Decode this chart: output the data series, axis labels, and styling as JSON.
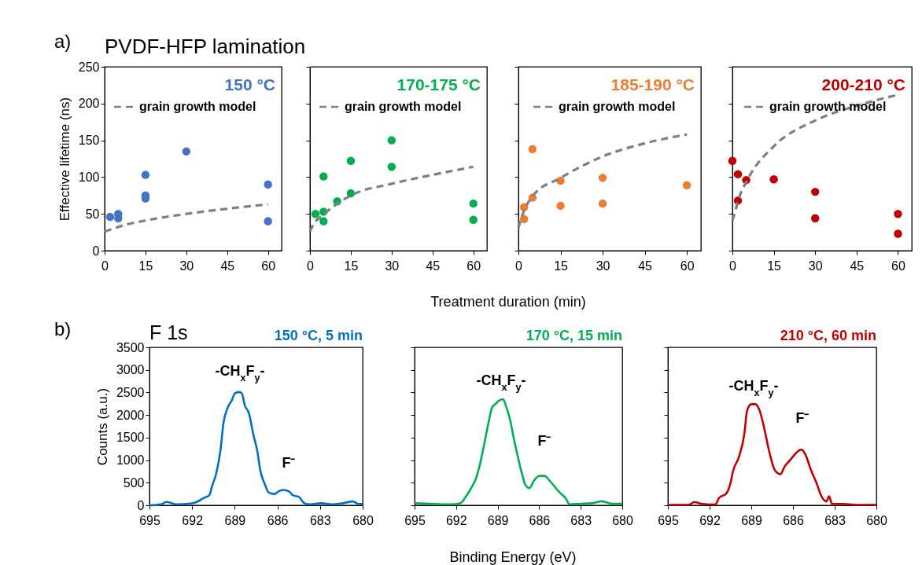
{
  "chart_data": [
    {
      "type": "scatter",
      "title": "PVDF-HFP lamination",
      "ylabel": "Effective lifetime (ns)",
      "annotations": [
        "a)"
      ],
      "xlim": [
        0,
        65
      ],
      "xticks": [
        0,
        15,
        30,
        45,
        60
      ],
      "ylim": [
        0,
        250
      ],
      "yticks": [
        0,
        50,
        100,
        150,
        200,
        250
      ],
      "legend": "top right",
      "series": [
        {
          "name": "150 °C",
          "marker": "circle",
          "color": "#4472c4",
          "x": [
            2,
            5,
            5,
            15,
            15,
            15,
            30,
            60,
            60
          ],
          "values": [
            46,
            50,
            44,
            103,
            75,
            71,
            135,
            90,
            40
          ]
        },
        {
          "name": "grain growth model",
          "type": "line",
          "color": "#7f7f7f",
          "line_style": "dashed",
          "x": [
            0,
            7.5,
            15,
            30,
            45,
            60
          ],
          "values": [
            26,
            35,
            41,
            50,
            57,
            63
          ]
        }
      ]
    },
    {
      "type": "scatter",
      "xlabel": "Treatment duration (min)",
      "xlim": [
        0,
        65
      ],
      "xticks": [
        0,
        15,
        30,
        45,
        60
      ],
      "ylim": [
        0,
        250
      ],
      "yticks": [
        0,
        50,
        100,
        150,
        200,
        250
      ],
      "tick_labels": "x",
      "legend": "top right",
      "series": [
        {
          "name": "170-175 °C",
          "marker": "circle",
          "color": "#00b050",
          "x": [
            2,
            5,
            5,
            5,
            10,
            15,
            15,
            30,
            30,
            60,
            60
          ],
          "values": [
            50,
            53,
            40,
            101,
            67,
            78,
            122,
            150,
            114,
            64,
            42
          ]
        },
        {
          "name": "grain growth model",
          "type": "line",
          "color": "#7f7f7f",
          "line_style": "dashed",
          "x": [
            0,
            1,
            5,
            15,
            30,
            45,
            60
          ],
          "values": [
            26,
            34,
            49,
            75,
            91,
            103,
            114
          ]
        }
      ]
    },
    {
      "type": "scatter",
      "xlim": [
        0,
        65
      ],
      "xticks": [
        0,
        15,
        30,
        45,
        60
      ],
      "ylim": [
        0,
        250
      ],
      "yticks": [
        0,
        50,
        100,
        150,
        200,
        250
      ],
      "tick_labels": "x",
      "legend": "top right",
      "series": [
        {
          "name": "185-190 °C",
          "marker": "circle",
          "color": "#ed7d31",
          "x": [
            2,
            2,
            5,
            5,
            15,
            15,
            30,
            30,
            60
          ],
          "values": [
            43,
            59,
            72,
            138,
            95,
            61,
            99,
            64,
            89
          ]
        },
        {
          "name": "grain growth model",
          "type": "line",
          "color": "#7f7f7f",
          "line_style": "dashed",
          "x": [
            0,
            1,
            5,
            15,
            30,
            45,
            60
          ],
          "values": [
            31,
            44,
            74,
            99,
            128,
            146,
            158
          ]
        }
      ]
    },
    {
      "type": "scatter",
      "xlim": [
        0,
        65
      ],
      "xticks": [
        0,
        15,
        30,
        45,
        60
      ],
      "ylim": [
        0,
        250
      ],
      "yticks": [
        0,
        50,
        100,
        150,
        200,
        250
      ],
      "tick_labels": "x",
      "legend": "top right",
      "series": [
        {
          "name": "200-210 °C",
          "marker": "circle",
          "color": "#c00000",
          "x": [
            0,
            2,
            5,
            2,
            15,
            30,
            30,
            60,
            60
          ],
          "values": [
            122,
            104,
            96,
            68,
            97,
            80,
            44,
            50,
            23
          ]
        },
        {
          "name": "grain growth model",
          "type": "line",
          "color": "#7f7f7f",
          "line_style": "dashed",
          "x": [
            0,
            1,
            2,
            5.7,
            15,
            30,
            45,
            60
          ],
          "values": [
            41,
            53,
            67,
            98,
            142,
            177,
            197,
            212
          ]
        }
      ]
    },
    {
      "type": "line",
      "title": "F 1s",
      "subtitle": "150 °C, 5 min",
      "ylabel": "Counts (a.u.)",
      "annotations": [
        "b)",
        "-CH$_{x}$F$_{y}$-",
        "F⁻"
      ],
      "xlim": [
        695,
        680
      ],
      "xticks": [
        695,
        692,
        689,
        686,
        683,
        680
      ],
      "ylim": [
        0,
        3500
      ],
      "yticks": [
        0,
        500,
        1000,
        1500,
        2000,
        2500,
        3000,
        3500
      ],
      "series": [
        {
          "color": "#0070c0",
          "x": [
            695,
            694.2,
            693.8,
            693.1,
            692.0,
            691.5,
            691.2,
            690.8,
            690.6,
            690.3,
            690.0,
            689.8,
            689.5,
            689.2,
            689.0,
            688.7,
            688.5,
            688.3,
            688.0,
            687.7,
            687.4,
            687.2,
            686.9,
            686.6,
            686.2,
            685.9,
            685.6,
            685.2,
            684.9,
            684.5,
            684.1,
            683.7,
            682.9,
            682.2,
            681.4,
            680.7,
            680.3,
            680
          ],
          "values": [
            0,
            20,
            75,
            20,
            45,
            100,
            160,
            220,
            420,
            710,
            1230,
            1810,
            2160,
            2330,
            2480,
            2510,
            2480,
            2220,
            2040,
            1580,
            1180,
            770,
            480,
            280,
            250,
            310,
            340,
            310,
            220,
            190,
            45,
            20,
            45,
            20,
            45,
            85,
            30,
            30
          ]
        }
      ]
    },
    {
      "type": "line",
      "subtitle": "170 °C, 15 min",
      "xlabel": "Binding Energy (eV)",
      "annotations": [
        "-CH$_{x}$F$_{y}$-",
        "F⁻"
      ],
      "xlim": [
        695,
        680
      ],
      "xticks": [
        695,
        692,
        689,
        686,
        683,
        680
      ],
      "ylim": [
        0,
        3500
      ],
      "yticks": [
        0,
        500,
        1000,
        1500,
        2000,
        2500,
        3000,
        3500
      ],
      "tick_labels": "x",
      "series": [
        {
          "color": "#00b050",
          "x": [
            695,
            693.6,
            692.4,
            691.7,
            691.3,
            690.9,
            690.6,
            690.3,
            690.0,
            689.7,
            689.4,
            689.1,
            688.9,
            688.6,
            688.4,
            688.1,
            687.8,
            687.5,
            687.2,
            687.0,
            686.7,
            686.4,
            686.0,
            685.6,
            685.3,
            684.9,
            684.5,
            684.1,
            683.8,
            683.0,
            682.2,
            681.5,
            680.7,
            680
          ],
          "values": [
            45,
            30,
            20,
            45,
            190,
            390,
            565,
            880,
            1310,
            1770,
            2170,
            2260,
            2320,
            2350,
            2200,
            1890,
            1430,
            1020,
            650,
            450,
            380,
            535,
            650,
            650,
            565,
            420,
            275,
            160,
            20,
            35,
            45,
            90,
            35,
            35
          ]
        }
      ]
    },
    {
      "type": "line",
      "subtitle": "210 °C, 60 min",
      "annotations": [
        "-CH$_{x}$F$_{y}$-",
        "F⁻"
      ],
      "xlim": [
        695,
        680
      ],
      "xticks": [
        695,
        692,
        689,
        686,
        683,
        680
      ],
      "ylim": [
        0,
        3500
      ],
      "yticks": [
        0,
        500,
        1000,
        1500,
        2000,
        2500,
        3000,
        3500
      ],
      "tick_labels": "x",
      "series": [
        {
          "color": "#c00000",
          "x": [
            695,
            693.5,
            693.1,
            692.5,
            691.6,
            691.3,
            690.8,
            690.5,
            690.3,
            689.9,
            689.5,
            689.3,
            689.0,
            688.7,
            688.4,
            688.1,
            687.7,
            687.3,
            686.9,
            686.6,
            686.2,
            685.8,
            685.4,
            685.1,
            684.7,
            684.3,
            684.0,
            683.6,
            683.4,
            683.2,
            682.4,
            681.5,
            680
          ],
          "values": [
            10,
            10,
            70,
            30,
            15,
            170,
            260,
            490,
            775,
            1060,
            1580,
            2100,
            2240,
            2240,
            2100,
            1750,
            1180,
            775,
            690,
            860,
            1005,
            1150,
            1235,
            1120,
            775,
            490,
            230,
            85,
            200,
            30,
            30,
            10,
            10
          ]
        }
      ]
    }
  ]
}
